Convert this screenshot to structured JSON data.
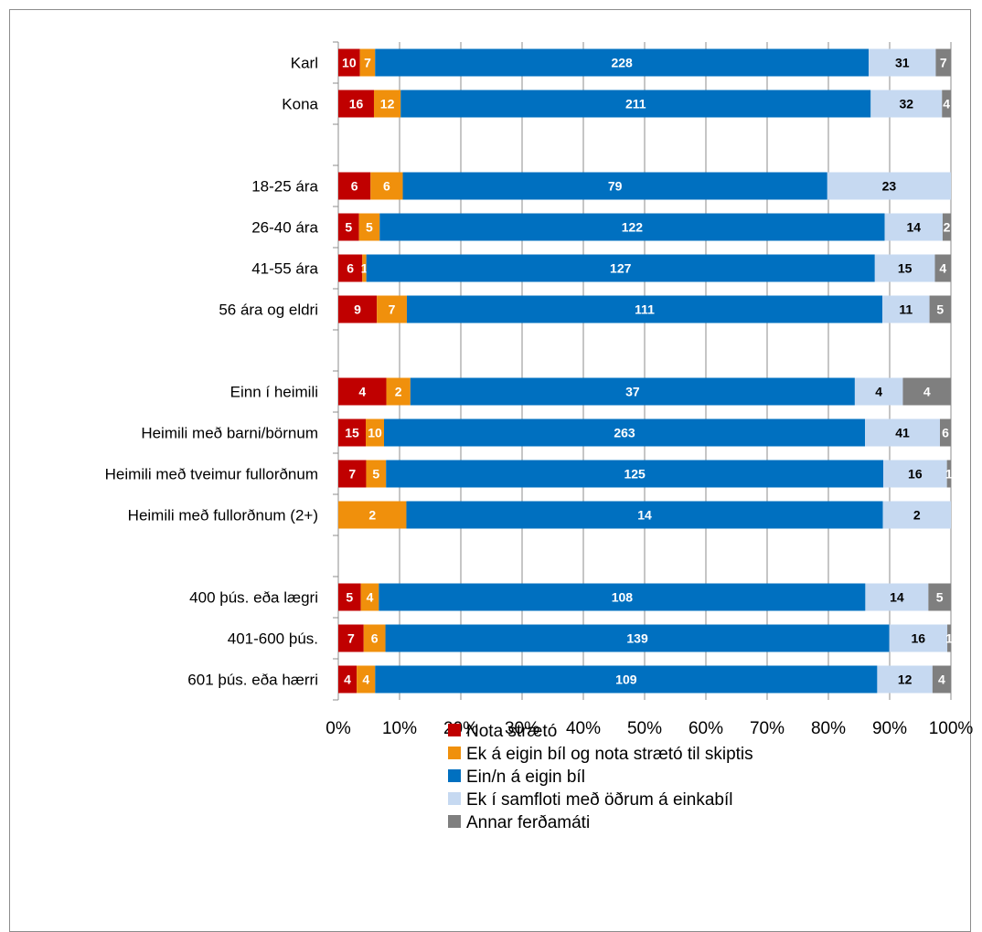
{
  "chart_data": {
    "type": "bar",
    "orientation": "horizontal",
    "stacking": "percent",
    "categories": [
      "Karl",
      "Kona",
      "",
      "18-25 ára",
      "26-40 ára",
      "41-55 ára",
      "56 ára og eldri",
      "",
      "Einn í heimili",
      "Heimili með barni/börnum",
      "Heimili með tveimur fullorðnum",
      "Heimili með fullorðnum (2+)",
      "",
      "400 þús. eða lægri",
      "401-600 þús.",
      "601 þús. eða hærri"
    ],
    "series": [
      {
        "name": "Nota strætó",
        "color": "#c00000",
        "values": [
          10,
          16,
          null,
          6,
          5,
          6,
          9,
          null,
          4,
          15,
          7,
          0,
          null,
          5,
          7,
          4
        ],
        "labels": [
          "10",
          "16",
          "",
          "6",
          "5",
          "6",
          "9",
          "",
          "4",
          "15",
          "7",
          "",
          "",
          "5",
          "7",
          "4"
        ]
      },
      {
        "name": "Ek á eigin bíl og nota strætó til skiptis",
        "color": "#f0900c",
        "values": [
          7,
          12,
          null,
          6,
          5,
          1,
          7,
          null,
          2,
          10,
          5,
          2,
          null,
          4,
          6,
          4
        ],
        "labels": [
          "7",
          "12",
          "",
          "6",
          "5",
          "1",
          "7",
          "",
          "2",
          "10",
          "5",
          "2",
          "",
          "4",
          "6",
          "4"
        ]
      },
      {
        "name": "Ein/n á eigin bíl",
        "color": "#0070c0",
        "values": [
          228,
          211,
          null,
          79,
          122,
          127,
          111,
          null,
          37,
          263,
          125,
          14,
          null,
          108,
          139,
          109
        ],
        "labels": [
          "228",
          "211",
          "",
          "79",
          "122",
          "127",
          "111",
          "",
          "37",
          "263",
          "125",
          "14",
          "",
          "108",
          "139",
          "109"
        ]
      },
      {
        "name": "Ek í samfloti með öðrum á einkabíl",
        "color": "#c6d9f1",
        "values": [
          31,
          32,
          null,
          23,
          14,
          15,
          11,
          null,
          4,
          41,
          16,
          2,
          null,
          14,
          16,
          12
        ],
        "labels": [
          "31",
          "32",
          "",
          "23",
          "14",
          "15",
          "11",
          "",
          "4",
          "41",
          "16",
          "2",
          "",
          "14",
          "16",
          "12"
        ]
      },
      {
        "name": "Annar ferðamáti",
        "color": "#7f7f7f",
        "values": [
          7,
          4,
          null,
          0,
          2,
          4,
          5,
          null,
          4,
          6,
          1,
          0,
          null,
          5,
          1,
          4
        ],
        "labels": [
          "7",
          "4",
          "",
          "",
          "2",
          "4",
          "5",
          "",
          "4",
          "6",
          "1",
          "",
          "",
          "5",
          "1",
          "4"
        ]
      }
    ],
    "x_ticks": [
      "0%",
      "10%",
      "20%",
      "30%",
      "40%",
      "50%",
      "60%",
      "70%",
      "80%",
      "90%",
      "100%"
    ],
    "xlim": [
      0,
      100
    ],
    "grid": true,
    "legend_position": "bottom"
  }
}
